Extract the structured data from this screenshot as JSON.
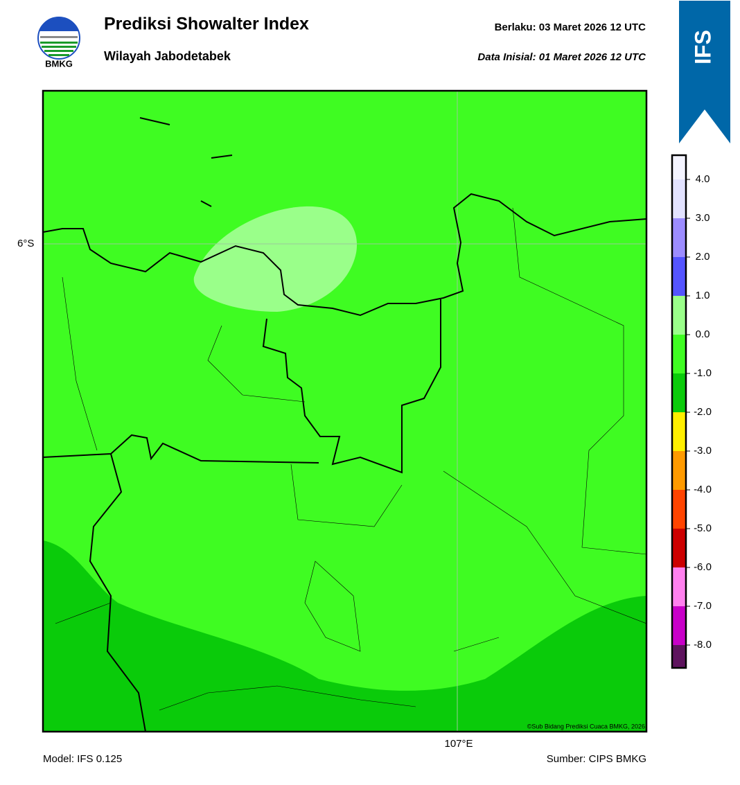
{
  "header": {
    "title": "Prediksi Showalter Index",
    "subtitle": "Wilayah Jabodetabek",
    "valid_label": "Berlaku:  03 Maret 2026 12 UTC",
    "init_label": "Data Inisial:  01 Maret 2026 12 UTC",
    "logo_text": "BMKG",
    "badge": "IFS"
  },
  "map": {
    "lat_label": "6°S",
    "lon_label": "107°E",
    "credit": "©Sub Bidang Prediksi Cuaca BMKG, 2026"
  },
  "colorbar": {
    "colors": [
      "#f4f4ff",
      "#e2e2ff",
      "#9c8cff",
      "#5454ff",
      "#9aff8a",
      "#3ffc22",
      "#0acb0a",
      "#ffee00",
      "#ff9a00",
      "#ff4400",
      "#cc0000",
      "#ff80ee",
      "#c800c8",
      "#5e145e"
    ],
    "ticks": [
      "4.0",
      "3.0",
      "2.0",
      "1.0",
      "0.0",
      "-1.0",
      "-2.0",
      "-3.0",
      "-4.0",
      "-5.0",
      "-6.0",
      "-7.0",
      "-8.0"
    ]
  },
  "footer": {
    "model": "Model: IFS 0.125",
    "source": "Sumber: CIPS BMKG"
  }
}
